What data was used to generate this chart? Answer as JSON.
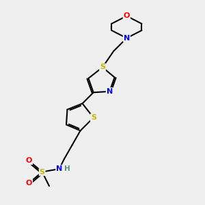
{
  "bg_color": "#efefef",
  "atom_colors": {
    "S": "#c8b400",
    "N": "#0000ff",
    "O": "#ff0000",
    "C": "#000000",
    "H": "#5a8a8a"
  },
  "bond_color": "#000000",
  "bond_width": 1.5
}
